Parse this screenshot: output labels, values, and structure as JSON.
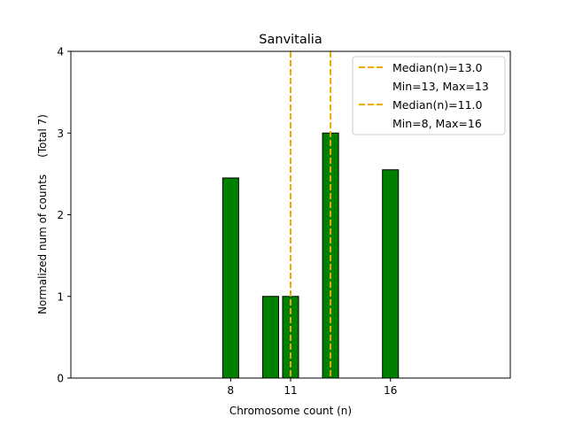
{
  "chart_data": {
    "type": "bar",
    "title": "Sanvitalia",
    "xlabel": "Chromosome count (n)",
    "ylabel": "Normalized num of counts     (Total 7)",
    "xlim": [
      0,
      22
    ],
    "ylim": [
      0,
      4
    ],
    "xticks": [
      8,
      11,
      16
    ],
    "yticks": [
      0,
      1,
      2,
      3,
      4
    ],
    "bar_width": 0.8,
    "bars": [
      {
        "x": 8,
        "value": 2.45
      },
      {
        "x": 10,
        "value": 1.0
      },
      {
        "x": 11,
        "value": 1.0
      },
      {
        "x": 13,
        "value": 3.0
      },
      {
        "x": 16,
        "value": 2.55
      }
    ],
    "median_lines": [
      {
        "x": 13,
        "label": "Median(n)=13.0",
        "sublabel": "Min=13, Max=13"
      },
      {
        "x": 11,
        "label": "Median(n)=11.0",
        "sublabel": "Min=8, Max=16"
      }
    ],
    "legend_position": "top-right",
    "colors": {
      "bar_fill": "#008000",
      "bar_edge": "#000000",
      "median_line": "#f0a800",
      "legend_border": "#cccccc"
    }
  }
}
